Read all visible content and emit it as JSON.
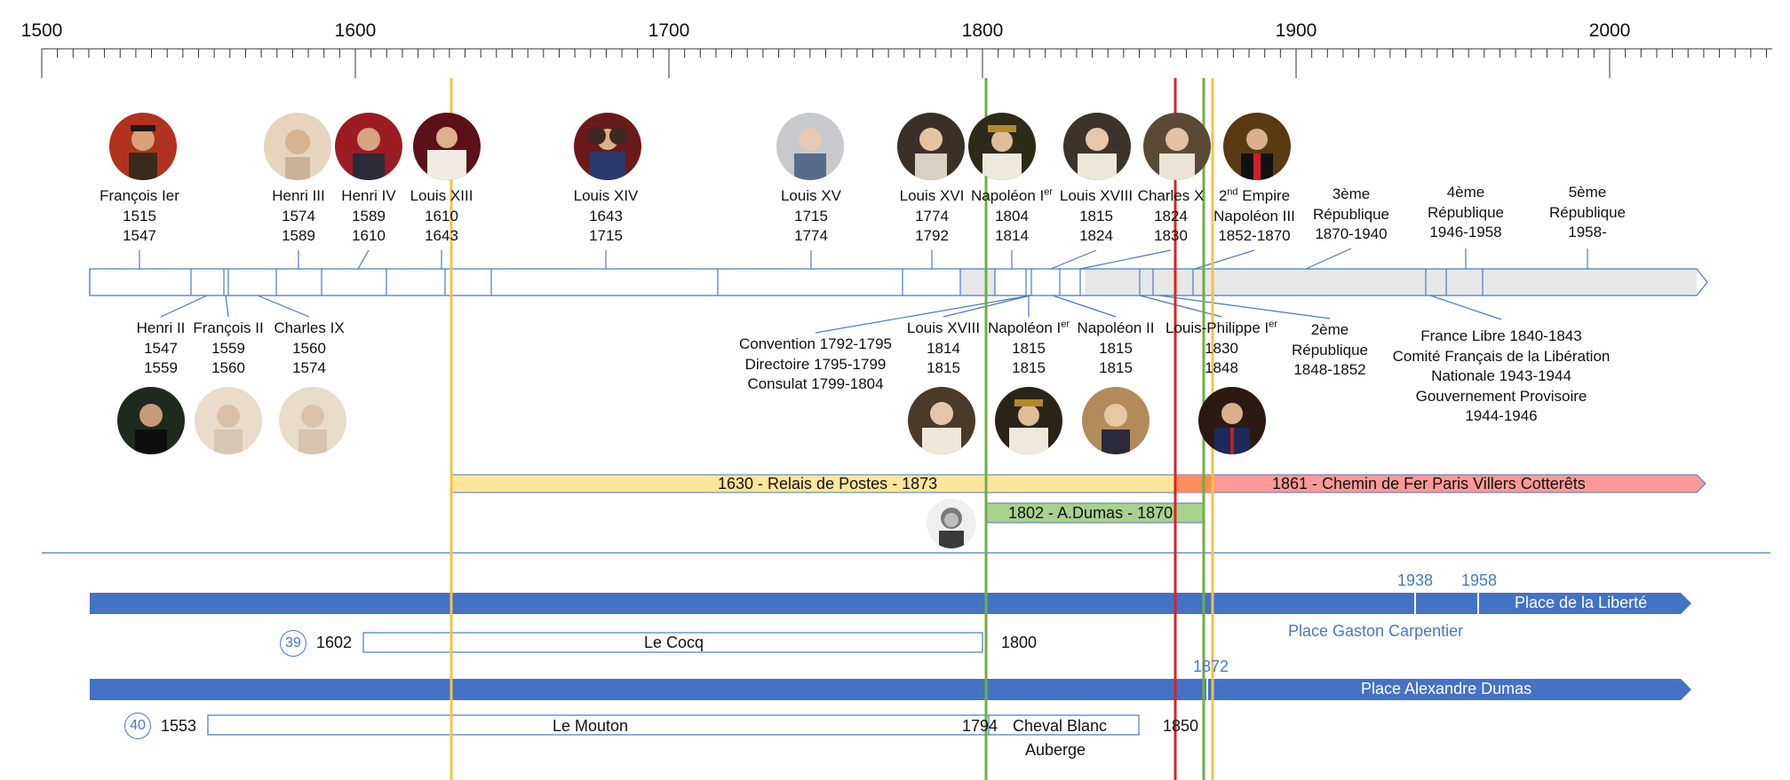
{
  "axis": {
    "years": [
      "1500",
      "1600",
      "1700",
      "1800",
      "1900",
      "2000"
    ]
  },
  "rulers_top": [
    {
      "name": "François Ier",
      "start": "1515",
      "end": "1547"
    },
    {
      "name": "Henri III",
      "start": "1574",
      "end": "1589"
    },
    {
      "name": "Henri IV",
      "start": "1589",
      "end": "1610"
    },
    {
      "name": "Louis XIII",
      "start": "1610",
      "end": "1643"
    },
    {
      "name": "Louis XIV",
      "start": "1643",
      "end": "1715"
    },
    {
      "name": "Louis XV",
      "start": "1715",
      "end": "1774"
    },
    {
      "name": "Louis XVI",
      "start": "1774",
      "end": "1792"
    },
    {
      "name": "Napoléon I",
      "sup": "er",
      "start": "1804",
      "end": "1814"
    },
    {
      "name": "Louis XVIII",
      "start": "1815",
      "end": "1824"
    },
    {
      "name": "Charles X",
      "start": "1824",
      "end": "1830"
    }
  ],
  "top_extra": {
    "second_empire": {
      "pre": "2",
      "sup": "nd",
      "post": " Empire",
      "line2": "Napoléon III",
      "line3": "1852-1870"
    },
    "third_rep": {
      "l1": "3ème",
      "l2": "République",
      "l3": "1870-1940"
    },
    "fourth_rep": {
      "l1": "4ème",
      "l2": "République",
      "l3": "1946-1958"
    },
    "fifth_rep": {
      "l1": "5ème",
      "l2": "République",
      "l3": "1958-"
    }
  },
  "rulers_bottom": [
    {
      "name": "Henri II",
      "start": "1547",
      "end": "1559"
    },
    {
      "name": "François II",
      "start": "1559",
      "end": "1560"
    },
    {
      "name": "Charles IX",
      "start": "1560",
      "end": "1574"
    },
    {
      "name": "Louis XVIII",
      "start": "1814",
      "end": "1815"
    },
    {
      "name": "Napoléon I",
      "sup": "er",
      "start": "1815",
      "end": "1815"
    },
    {
      "name": "Napoléon II",
      "start": "1815",
      "end": "1815"
    },
    {
      "name": "Louis-Philippe I",
      "sup": "er",
      "start": "1830",
      "end": "1848"
    }
  ],
  "bottom_extra": {
    "revolution": [
      "Convention 1792-1795",
      "Directoire 1795-1799",
      "Consulat 1799-1804"
    ],
    "second_rep": {
      "l1": "2ème",
      "l2": "République",
      "l3": "1848-1852"
    },
    "liberation": [
      "France Libre 1840-1843",
      "Comité Français de la Libération",
      "Nationale 1943-1944",
      "Gouvernement Provisoire",
      "1944-1946"
    ]
  },
  "bands": {
    "relais": "1630 - Relais de Postes - 1873",
    "chemin": "1861 - Chemin de Fer Paris  Villers Cotterêts",
    "dumas": "1802 - A.Dumas - 1870"
  },
  "streets": {
    "liberte_year1": "1938",
    "liberte_year2": "1958",
    "liberte_name": "Place de la Liberté",
    "carpentier_name": "Place Gaston Carpentier",
    "no39": "39",
    "cocq_start": "1602",
    "cocq_name": "Le Cocq",
    "cocq_end": "1800",
    "dumas_year": "1872",
    "dumas_place": "Place Alexandre Dumas",
    "no40": "40",
    "mouton_start": "1553",
    "mouton_name": "Le Mouton",
    "mouton_end": "1794",
    "cheval_name": "Cheval Blanc",
    "auberge": "Auberge",
    "end_1850": "1850"
  },
  "colors": {
    "grid_blue": "#4a77c4",
    "street_bar": "#4472c4",
    "yellow": "#f5c242",
    "green": "#70ad47",
    "red": "#e02020",
    "relais_fill": "#ffe699",
    "chemin_fill": "#ff9999",
    "dumas_fill": "#a9d18e",
    "grey_fill": "#e8e8e8"
  }
}
